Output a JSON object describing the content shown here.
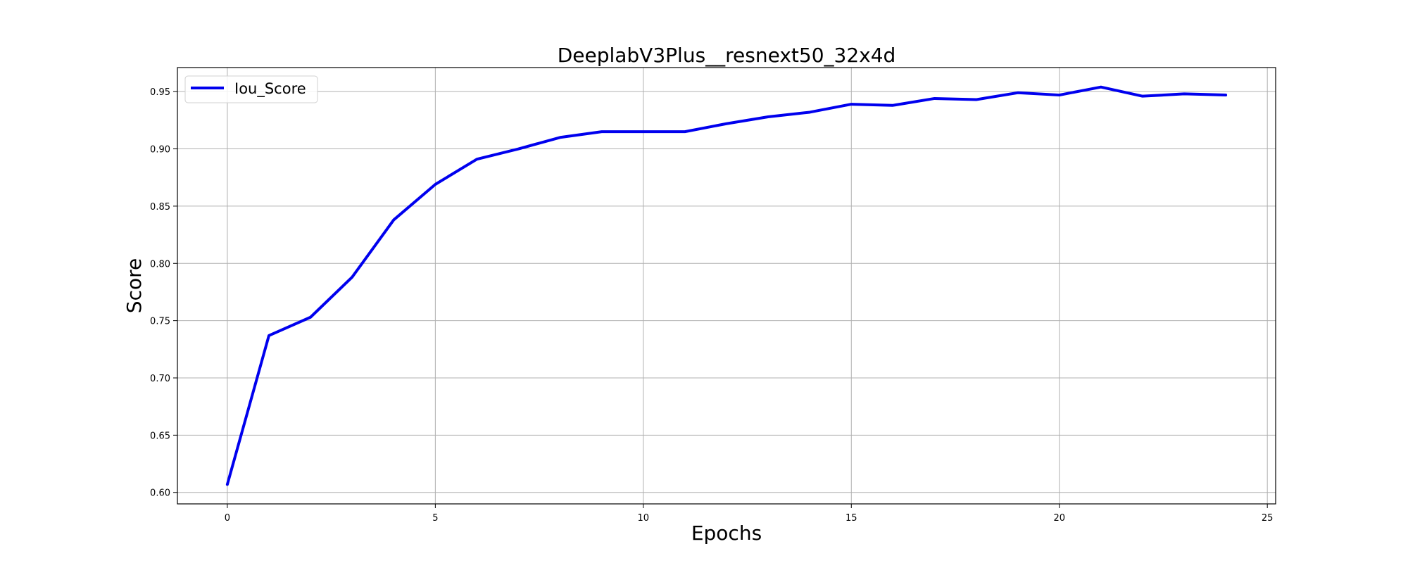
{
  "chart_data": {
    "type": "line",
    "title": "DeeplabV3Plus__resnext50_32x4d",
    "xlabel": "Epochs",
    "ylabel": "Score",
    "xlim": [
      -1.2,
      25.2
    ],
    "ylim": [
      0.59,
      0.971
    ],
    "xticks": [
      0,
      5,
      10,
      15,
      20,
      25
    ],
    "yticks": [
      0.6,
      0.65,
      0.7,
      0.75,
      0.8,
      0.85,
      0.9,
      0.95
    ],
    "xtick_labels": [
      "0",
      "5",
      "10",
      "15",
      "20",
      "25"
    ],
    "ytick_labels": [
      "0.60",
      "0.65",
      "0.70",
      "0.75",
      "0.80",
      "0.85",
      "0.90",
      "0.95"
    ],
    "grid": true,
    "legend_position": "upper-left",
    "series": [
      {
        "name": "Iou_Score",
        "color": "#0000ee",
        "x": [
          0,
          1,
          2,
          3,
          4,
          5,
          6,
          7,
          8,
          9,
          10,
          11,
          12,
          13,
          14,
          15,
          16,
          17,
          18,
          19,
          20,
          21,
          22,
          23,
          24
        ],
        "y": [
          0.607,
          0.737,
          0.753,
          0.788,
          0.838,
          0.869,
          0.891,
          0.9,
          0.91,
          0.915,
          0.915,
          0.915,
          0.922,
          0.928,
          0.932,
          0.939,
          0.938,
          0.944,
          0.943,
          0.949,
          0.947,
          0.954,
          0.946,
          0.948,
          0.947
        ]
      }
    ]
  }
}
